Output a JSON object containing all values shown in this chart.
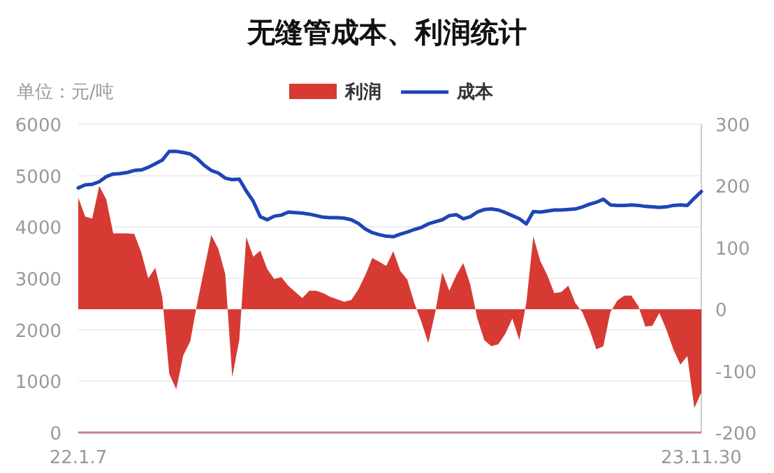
{
  "chart_data": {
    "type": "line",
    "title": "无缝管成本、利润统计",
    "ylabel": "单位：元/吨",
    "categories": [
      "22.1.7",
      null,
      null,
      null,
      null,
      null,
      null,
      null,
      null,
      null,
      null,
      null,
      null,
      null,
      null,
      null,
      null,
      null,
      null,
      null,
      null,
      null,
      null,
      null,
      null,
      null,
      null,
      null,
      null,
      null,
      null,
      null,
      null,
      null,
      null,
      null,
      null,
      null,
      null,
      null,
      null,
      null,
      null,
      null,
      null,
      null,
      null,
      null,
      null,
      null,
      null,
      null,
      null,
      null,
      null,
      null,
      null,
      null,
      null,
      null,
      null,
      null,
      null,
      null,
      null,
      null,
      null,
      null,
      null,
      null,
      null,
      null,
      null,
      null,
      null,
      null,
      null,
      null,
      null,
      null,
      null,
      null,
      null,
      null,
      null,
      null,
      null,
      null,
      null,
      "23.11.30"
    ],
    "series": [
      {
        "name": "利润",
        "type": "area",
        "axis": "y2",
        "color": "#d63a33",
        "values": [
          181,
          150,
          147,
          200,
          178,
          123,
          123,
          123,
          122,
          92,
          50,
          67,
          20,
          -105,
          -130,
          -75,
          -52,
          10,
          65,
          120,
          98,
          57,
          -110,
          -50,
          117,
          85,
          95,
          65,
          49,
          52,
          38,
          28,
          18,
          30,
          30,
          26,
          20,
          16,
          12,
          15,
          32,
          55,
          83,
          77,
          70,
          94,
          62,
          48,
          10,
          -20,
          -55,
          -5,
          60,
          30,
          55,
          75,
          40,
          -15,
          -50,
          -60,
          -57,
          -40,
          -15,
          -50,
          10,
          118,
          78,
          55,
          26,
          28,
          38,
          10,
          -5,
          -32,
          -65,
          -60,
          -5,
          14,
          22,
          22,
          5,
          -28,
          -27,
          -6,
          -33,
          -65,
          -90,
          -76,
          -160,
          -135
        ]
      },
      {
        "name": "成本",
        "color": "#1f45b5",
        "values": [
          4760,
          4820,
          4830,
          4880,
          4980,
          5030,
          5040,
          5060,
          5100,
          5110,
          5160,
          5230,
          5300,
          5470,
          5470,
          5450,
          5420,
          5330,
          5200,
          5100,
          5050,
          4950,
          4920,
          4930,
          4700,
          4500,
          4200,
          4140,
          4210,
          4230,
          4290,
          4280,
          4270,
          4250,
          4220,
          4190,
          4180,
          4180,
          4170,
          4140,
          4070,
          3960,
          3890,
          3850,
          3820,
          3810,
          3860,
          3900,
          3950,
          3990,
          4060,
          4100,
          4140,
          4220,
          4240,
          4160,
          4200,
          4290,
          4340,
          4350,
          4330,
          4280,
          4220,
          4160,
          4060,
          4300,
          4290,
          4310,
          4330,
          4330,
          4340,
          4350,
          4390,
          4440,
          4480,
          4540,
          4430,
          4420,
          4420,
          4430,
          4420,
          4400,
          4390,
          4380,
          4390,
          4420,
          4430,
          4420,
          4560,
          4690
        ]
      }
    ],
    "ylim": [
      0,
      6000
    ],
    "yticks": [
      0,
      1000,
      2000,
      3000,
      4000,
      5000,
      6000
    ],
    "y2lim": [
      -200,
      300
    ],
    "y2ticks": [
      -200,
      -100,
      0,
      100,
      200,
      300
    ],
    "grid": "y",
    "legend": "top"
  }
}
